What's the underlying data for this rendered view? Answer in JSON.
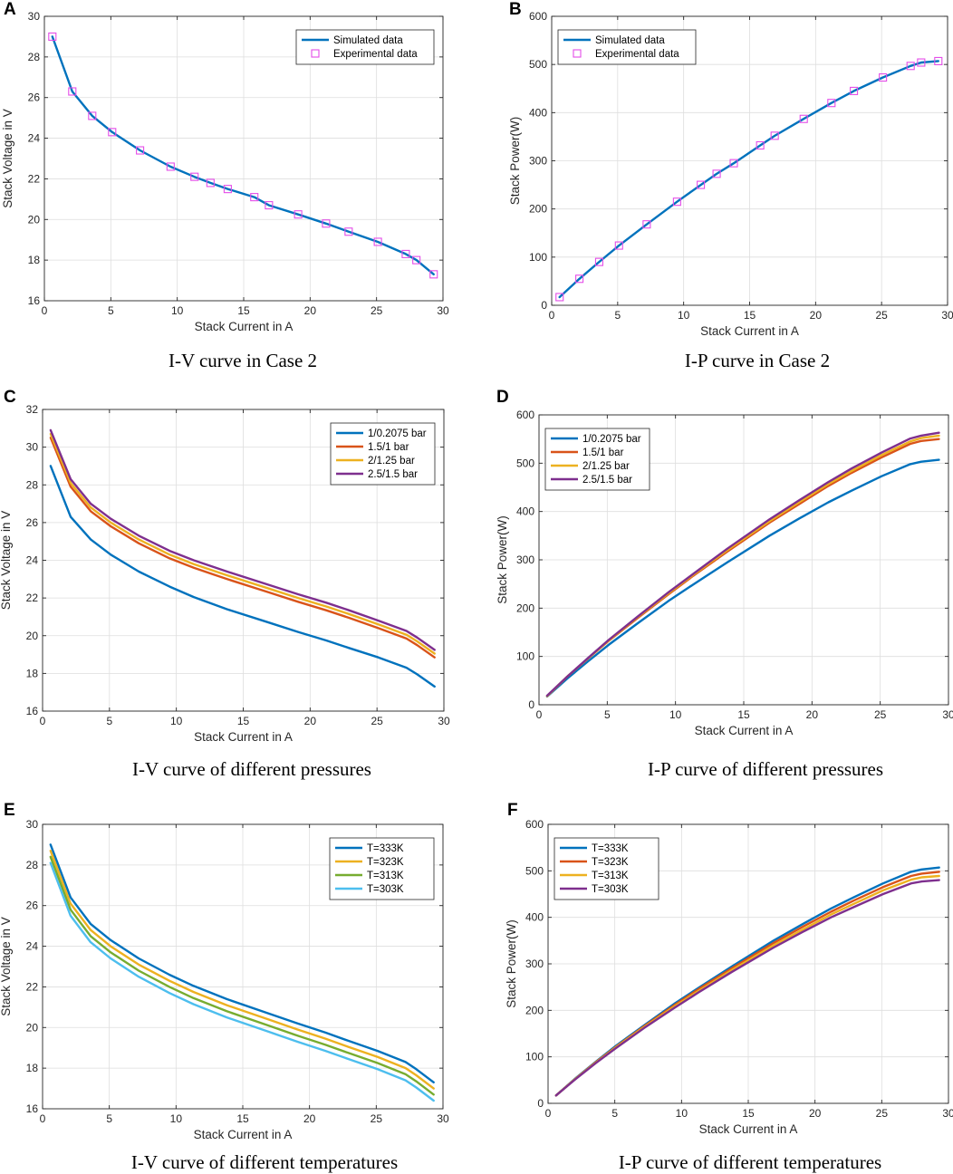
{
  "chart_data": [
    {
      "letter": "A",
      "caption": "I-V curve in Case 2",
      "type": "line",
      "xlabel": "Stack Current in A",
      "ylabel": "Stack Voltage in V",
      "xlim": [
        0,
        30
      ],
      "ylim": [
        16,
        30
      ],
      "xticks": [
        0,
        5,
        10,
        15,
        20,
        25,
        30
      ],
      "yticks": [
        16,
        18,
        20,
        22,
        24,
        26,
        28,
        30
      ],
      "legend_loc": "top-right",
      "series": [
        {
          "name": "Simulated data",
          "kind": "line",
          "color": "#0072BD",
          "x": [
            0.6,
            2.1,
            3.6,
            5.1,
            7.2,
            9.5,
            11.3,
            12.5,
            13.8,
            15.8,
            16.9,
            19.1,
            21.2,
            22.9,
            25.1,
            27.2,
            28.0,
            29.3
          ],
          "y": [
            29.0,
            26.3,
            25.1,
            24.3,
            23.4,
            22.6,
            22.1,
            21.8,
            21.5,
            21.1,
            20.7,
            20.25,
            19.8,
            19.4,
            18.9,
            18.3,
            18.0,
            17.3
          ]
        },
        {
          "name": "Experimental data",
          "kind": "marker",
          "color": "#E44DE8",
          "x": [
            0.6,
            2.1,
            3.6,
            5.1,
            7.2,
            9.5,
            11.3,
            12.5,
            13.8,
            15.8,
            16.9,
            19.1,
            21.2,
            22.9,
            25.1,
            27.2,
            28.0,
            29.3
          ],
          "y": [
            29.0,
            26.3,
            25.1,
            24.3,
            23.4,
            22.6,
            22.1,
            21.8,
            21.5,
            21.1,
            20.7,
            20.25,
            19.8,
            19.4,
            18.9,
            18.3,
            18.0,
            17.3
          ]
        }
      ]
    },
    {
      "letter": "B",
      "caption": "I-P curve in Case 2",
      "type": "line",
      "xlabel": "Stack Current in A",
      "ylabel": "Stack Power(W)",
      "xlim": [
        0,
        30
      ],
      "ylim": [
        0,
        600
      ],
      "xticks": [
        0,
        5,
        10,
        15,
        20,
        25,
        30
      ],
      "yticks": [
        0,
        100,
        200,
        300,
        400,
        500,
        600
      ],
      "legend_loc": "top-left",
      "series": [
        {
          "name": "Simulated data",
          "kind": "line",
          "color": "#0072BD",
          "x": [
            0.6,
            2.1,
            3.6,
            5.1,
            7.2,
            9.5,
            11.3,
            12.5,
            13.8,
            15.8,
            16.9,
            19.1,
            21.2,
            22.9,
            25.1,
            27.2,
            28.0,
            29.3
          ],
          "y": [
            17,
            55,
            90,
            124,
            168,
            215,
            250,
            273,
            295,
            332,
            352,
            387,
            420,
            445,
            473,
            497,
            504,
            507
          ]
        },
        {
          "name": "Experimental data",
          "kind": "marker",
          "color": "#E44DE8",
          "x": [
            0.6,
            2.1,
            3.6,
            5.1,
            7.2,
            9.5,
            11.3,
            12.5,
            13.8,
            15.8,
            16.9,
            19.1,
            21.2,
            22.9,
            25.1,
            27.2,
            28.0,
            29.3
          ],
          "y": [
            17,
            55,
            90,
            124,
            168,
            215,
            250,
            273,
            295,
            332,
            352,
            387,
            420,
            445,
            473,
            497,
            504,
            507
          ]
        }
      ]
    },
    {
      "letter": "C",
      "caption": "I-V curve of different pressures",
      "type": "line",
      "xlabel": "Stack Current in A",
      "ylabel": "Stack Voltage in V",
      "xlim": [
        0,
        30
      ],
      "ylim": [
        16,
        32
      ],
      "xticks": [
        0,
        5,
        10,
        15,
        20,
        25,
        30
      ],
      "yticks": [
        16,
        18,
        20,
        22,
        24,
        26,
        28,
        30,
        32
      ],
      "legend_loc": "top-right",
      "series": [
        {
          "name": "1/0.2075 bar",
          "kind": "line",
          "color": "#0072BD",
          "x": [
            0.6,
            2.1,
            3.6,
            5.1,
            7.2,
            9.5,
            11.3,
            13.8,
            16.9,
            19.1,
            21.2,
            22.9,
            25.1,
            27.2,
            28.0,
            29.3
          ],
          "y": [
            29.0,
            26.3,
            25.1,
            24.3,
            23.4,
            22.6,
            22.05,
            21.4,
            20.7,
            20.2,
            19.75,
            19.35,
            18.85,
            18.3,
            17.95,
            17.3
          ]
        },
        {
          "name": "1.5/1 bar",
          "kind": "line",
          "color": "#D95319",
          "x": [
            0.6,
            2.1,
            3.6,
            5.1,
            7.2,
            9.5,
            11.3,
            13.8,
            16.9,
            19.1,
            21.2,
            22.9,
            25.1,
            27.2,
            28.0,
            29.3
          ],
          "y": [
            30.5,
            27.9,
            26.6,
            25.8,
            24.9,
            24.1,
            23.6,
            23.0,
            22.3,
            21.8,
            21.35,
            20.95,
            20.4,
            19.85,
            19.5,
            18.85
          ]
        },
        {
          "name": "2/1.25 bar",
          "kind": "line",
          "color": "#EDB120",
          "x": [
            0.6,
            2.1,
            3.6,
            5.1,
            7.2,
            9.5,
            11.3,
            13.8,
            16.9,
            19.1,
            21.2,
            22.9,
            25.1,
            27.2,
            28.0,
            29.3
          ],
          "y": [
            30.7,
            28.1,
            26.8,
            26.0,
            25.1,
            24.3,
            23.8,
            23.2,
            22.5,
            22.0,
            21.55,
            21.15,
            20.6,
            20.05,
            19.7,
            19.05
          ]
        },
        {
          "name": "2.5/1.5 bar",
          "kind": "line",
          "color": "#7E2F8E",
          "x": [
            0.6,
            2.1,
            3.6,
            5.1,
            7.2,
            9.5,
            11.3,
            13.8,
            16.9,
            19.1,
            21.2,
            22.9,
            25.1,
            27.2,
            28.0,
            29.3
          ],
          "y": [
            30.9,
            28.3,
            27.0,
            26.2,
            25.3,
            24.5,
            24.0,
            23.4,
            22.7,
            22.2,
            21.75,
            21.35,
            20.8,
            20.25,
            19.9,
            19.25
          ]
        }
      ]
    },
    {
      "letter": "D",
      "caption": "I-P curve of different pressures",
      "type": "line",
      "xlabel": "Stack Current in A",
      "ylabel": "Stack Power(W)",
      "xlim": [
        0,
        30
      ],
      "ylim": [
        0,
        600
      ],
      "xticks": [
        0,
        5,
        10,
        15,
        20,
        25,
        30
      ],
      "yticks": [
        0,
        100,
        200,
        300,
        400,
        500,
        600
      ],
      "legend_loc": "top-left",
      "series": [
        {
          "name": "1/0.2075 bar",
          "kind": "line",
          "color": "#0072BD",
          "x": [
            0.6,
            2.1,
            3.6,
            5.1,
            7.2,
            9.5,
            11.3,
            13.8,
            16.9,
            19.1,
            21.2,
            22.9,
            25.1,
            27.2,
            28.0,
            29.3
          ],
          "y": [
            17,
            55,
            90,
            124,
            168,
            215,
            249,
            295,
            350,
            386,
            419,
            443,
            473,
            498,
            503,
            507
          ]
        },
        {
          "name": "1.5/1 bar",
          "kind": "line",
          "color": "#D95319",
          "x": [
            0.6,
            2.1,
            3.6,
            5.1,
            7.2,
            9.5,
            11.3,
            13.8,
            16.9,
            19.1,
            21.2,
            22.9,
            25.1,
            27.2,
            28.0,
            29.3
          ],
          "y": [
            18,
            59,
            96,
            132,
            179,
            229,
            267,
            317,
            377,
            416,
            453,
            480,
            512,
            540,
            546,
            550
          ]
        },
        {
          "name": "2/1.25 bar",
          "kind": "line",
          "color": "#EDB120",
          "x": [
            0.6,
            2.1,
            3.6,
            5.1,
            7.2,
            9.5,
            11.3,
            13.8,
            16.9,
            19.1,
            21.2,
            22.9,
            25.1,
            27.2,
            28.0,
            29.3
          ],
          "y": [
            18,
            59,
            96,
            133,
            181,
            231,
            269,
            320,
            380,
            420,
            457,
            484,
            517,
            545,
            552,
            557
          ]
        },
        {
          "name": "2.5/1.5 bar",
          "kind": "line",
          "color": "#7E2F8E",
          "x": [
            0.6,
            2.1,
            3.6,
            5.1,
            7.2,
            9.5,
            11.3,
            13.8,
            16.9,
            19.1,
            21.2,
            22.9,
            25.1,
            27.2,
            28.0,
            29.3
          ],
          "y": [
            19,
            59,
            97,
            134,
            182,
            233,
            271,
            323,
            384,
            424,
            461,
            489,
            522,
            551,
            557,
            563
          ]
        }
      ]
    },
    {
      "letter": "E",
      "caption": "I-V curve of different temperatures",
      "type": "line",
      "xlabel": "Stack Current in A",
      "ylabel": "Stack Voltage in V",
      "xlim": [
        0,
        30
      ],
      "ylim": [
        16,
        30
      ],
      "xticks": [
        0,
        5,
        10,
        15,
        20,
        25,
        30
      ],
      "yticks": [
        16,
        18,
        20,
        22,
        24,
        26,
        28,
        30
      ],
      "legend_loc": "top-right",
      "series": [
        {
          "name": "T=333K",
          "kind": "line",
          "color": "#0072BD",
          "x": [
            0.6,
            2.1,
            3.6,
            5.1,
            7.2,
            9.5,
            11.3,
            13.8,
            16.9,
            19.1,
            21.2,
            22.9,
            25.1,
            27.2,
            28.0,
            29.3
          ],
          "y": [
            29.0,
            26.4,
            25.1,
            24.3,
            23.4,
            22.6,
            22.05,
            21.4,
            20.7,
            20.2,
            19.75,
            19.35,
            18.85,
            18.3,
            17.95,
            17.3
          ]
        },
        {
          "name": "T=323K",
          "kind": "line",
          "color": "#EDB120",
          "x": [
            0.6,
            2.1,
            3.6,
            5.1,
            7.2,
            9.5,
            11.3,
            13.8,
            16.9,
            19.1,
            21.2,
            22.9,
            25.1,
            27.2,
            28.0,
            29.3
          ],
          "y": [
            28.7,
            26.1,
            24.8,
            24.0,
            23.1,
            22.3,
            21.75,
            21.1,
            20.4,
            19.9,
            19.45,
            19.05,
            18.55,
            18.0,
            17.65,
            17.0
          ]
        },
        {
          "name": "T=313K",
          "kind": "line",
          "color": "#77AC30",
          "x": [
            0.6,
            2.1,
            3.6,
            5.1,
            7.2,
            9.5,
            11.3,
            13.8,
            16.9,
            19.1,
            21.2,
            22.9,
            25.1,
            27.2,
            28.0,
            29.3
          ],
          "y": [
            28.4,
            25.8,
            24.5,
            23.7,
            22.8,
            22.0,
            21.45,
            20.8,
            20.1,
            19.6,
            19.15,
            18.75,
            18.25,
            17.7,
            17.35,
            16.7
          ]
        },
        {
          "name": "T=303K",
          "kind": "line",
          "color": "#4DBEEE",
          "x": [
            0.6,
            2.1,
            3.6,
            5.1,
            7.2,
            9.5,
            11.3,
            13.8,
            16.9,
            19.1,
            21.2,
            22.9,
            25.1,
            27.2,
            28.0,
            29.3
          ],
          "y": [
            28.1,
            25.5,
            24.2,
            23.4,
            22.5,
            21.7,
            21.15,
            20.5,
            19.8,
            19.3,
            18.85,
            18.45,
            17.95,
            17.4,
            17.05,
            16.4
          ]
        }
      ]
    },
    {
      "letter": "F",
      "caption": "I-P curve of different temperatures",
      "type": "line",
      "xlabel": "Stack Current in A",
      "ylabel": "Stack Power(W)",
      "xlim": [
        0,
        30
      ],
      "ylim": [
        0,
        600
      ],
      "xticks": [
        0,
        5,
        10,
        15,
        20,
        25,
        30
      ],
      "yticks": [
        0,
        100,
        200,
        300,
        400,
        500,
        600
      ],
      "legend_loc": "top-left",
      "series": [
        {
          "name": "T=333K",
          "kind": "line",
          "color": "#0072BD",
          "x": [
            0.6,
            2.1,
            3.6,
            5.1,
            7.2,
            9.5,
            11.3,
            13.8,
            16.9,
            19.1,
            21.2,
            22.9,
            25.1,
            27.2,
            28.0,
            29.3
          ],
          "y": [
            17,
            55,
            90,
            124,
            168,
            215,
            249,
            295,
            350,
            386,
            419,
            443,
            473,
            498,
            503,
            507
          ]
        },
        {
          "name": "T=323K",
          "kind": "line",
          "color": "#D95319",
          "x": [
            0.6,
            2.1,
            3.6,
            5.1,
            7.2,
            9.5,
            11.3,
            13.8,
            16.9,
            19.1,
            21.2,
            22.9,
            25.1,
            27.2,
            28.0,
            29.3
          ],
          "y": [
            17,
            54,
            89,
            122,
            166,
            212,
            246,
            291,
            345,
            380,
            412,
            436,
            465,
            489,
            494,
            498
          ]
        },
        {
          "name": "T=313K",
          "kind": "line",
          "color": "#EDB120",
          "x": [
            0.6,
            2.1,
            3.6,
            5.1,
            7.2,
            9.5,
            11.3,
            13.8,
            16.9,
            19.1,
            21.2,
            22.9,
            25.1,
            27.2,
            28.0,
            29.3
          ],
          "y": [
            17,
            54,
            88,
            121,
            164,
            209,
            242,
            287,
            340,
            374,
            406,
            429,
            458,
            481,
            486,
            489
          ]
        },
        {
          "name": "T=303K",
          "kind": "line",
          "color": "#7E2F8E",
          "x": [
            0.6,
            2.1,
            3.6,
            5.1,
            7.2,
            9.5,
            11.3,
            13.8,
            16.9,
            19.1,
            21.2,
            22.9,
            25.1,
            27.2,
            28.0,
            29.3
          ],
          "y": [
            17,
            53,
            87,
            119,
            162,
            206,
            239,
            283,
            335,
            369,
            400,
            422,
            450,
            473,
            477,
            480
          ]
        }
      ]
    }
  ]
}
